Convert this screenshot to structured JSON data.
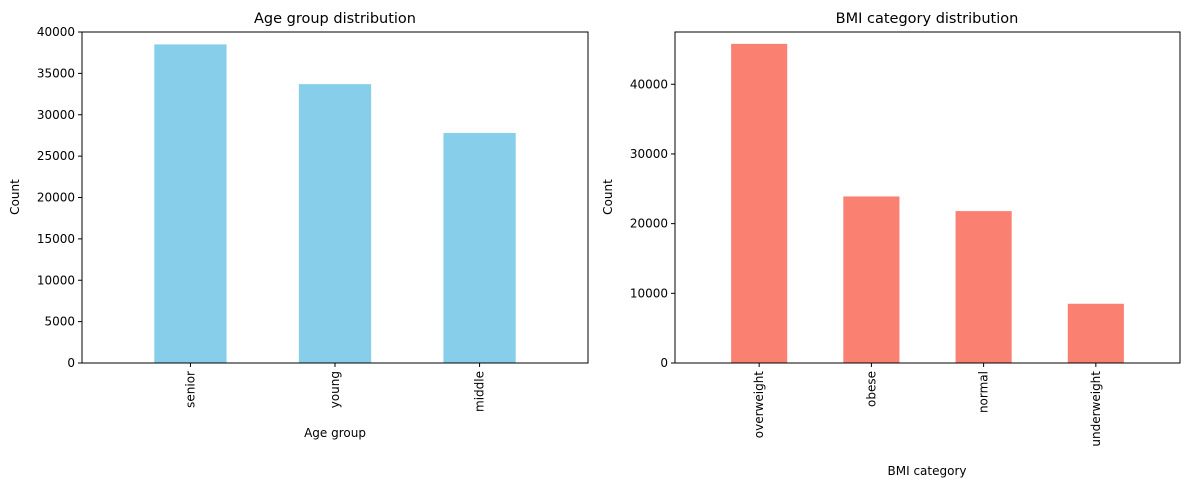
{
  "chart_data": [
    {
      "type": "bar",
      "title": "Age group distribution",
      "xlabel": "Age group",
      "ylabel": "Count",
      "categories": [
        "senior",
        "young",
        "middle"
      ],
      "values": [
        38500,
        33700,
        27800
      ],
      "ylim": [
        0,
        40000
      ],
      "yticks": [
        0,
        5000,
        10000,
        15000,
        20000,
        25000,
        30000,
        35000,
        40000
      ],
      "color": "#87ceeb",
      "grid": false
    },
    {
      "type": "bar",
      "title": "BMI category distribution",
      "xlabel": "BMI category",
      "ylabel": "Count",
      "categories": [
        "overweight",
        "obese",
        "normal",
        "underweight"
      ],
      "values": [
        45800,
        23900,
        21800,
        8500
      ],
      "ylim": [
        0,
        47500
      ],
      "yticks": [
        0,
        10000,
        20000,
        30000,
        40000
      ],
      "color": "#fa8072",
      "grid": false
    }
  ]
}
